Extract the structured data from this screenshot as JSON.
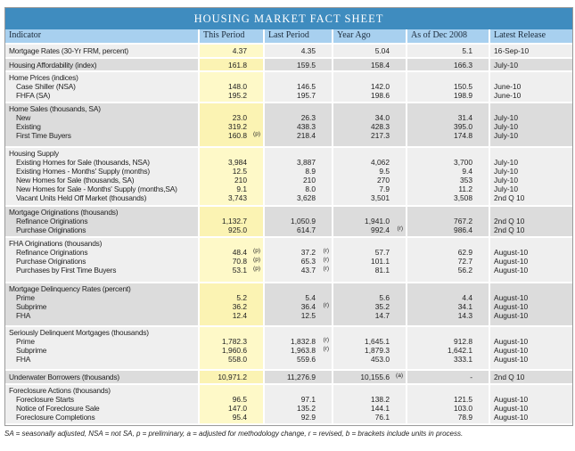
{
  "title": "HOUSING MARKET FACT SHEET",
  "columns": [
    "Indicator",
    "This Period",
    "Last Period",
    "Year Ago",
    "As of Dec 2008",
    "Latest Release"
  ],
  "rows": [
    {
      "label": "Mortgage Rates (30-Yr FRM, percent)",
      "values": [
        "4.37",
        "4.35",
        "5.04",
        "5.1"
      ],
      "notes": [
        "",
        "",
        "",
        ""
      ],
      "release": "16-Sep-10"
    },
    {
      "label": "Housing Affordability (index)",
      "values": [
        "161.8",
        "159.5",
        "158.4",
        "166.3"
      ],
      "notes": [
        "",
        "",
        "",
        ""
      ],
      "release": "July-10"
    },
    {
      "label": "Home Prices (indices)",
      "items": [
        {
          "label": "Case Shiller (NSA)",
          "values": [
            "148.0",
            "146.5",
            "142.0",
            "150.5"
          ],
          "notes": [
            "",
            "",
            "",
            ""
          ],
          "release": "June-10"
        },
        {
          "label": "FHFA (SA)",
          "values": [
            "195.2",
            "195.7",
            "198.6",
            "198.9"
          ],
          "notes": [
            "",
            "",
            "",
            ""
          ],
          "release": "June-10"
        }
      ]
    },
    {
      "label": "Home Sales (thousands, SA)",
      "items": [
        {
          "label": "New",
          "values": [
            "23.0",
            "26.3",
            "34.0",
            "31.4"
          ],
          "notes": [
            "",
            "",
            "",
            ""
          ],
          "release": "July-10"
        },
        {
          "label": "Existing",
          "values": [
            "319.2",
            "438.3",
            "428.3",
            "395.0"
          ],
          "notes": [
            "",
            "",
            "",
            ""
          ],
          "release": "July-10"
        },
        {
          "label": "First Time Buyers",
          "values": [
            "160.8",
            "218.4",
            "217.3",
            "174.8"
          ],
          "notes": [
            "(p)",
            "",
            "",
            ""
          ],
          "release": "July-10"
        }
      ]
    },
    {
      "label": "Housing Supply",
      "items": [
        {
          "label": "Existing Homes for Sale (thousands, NSA)",
          "values": [
            "3,984",
            "3,887",
            "4,062",
            "3,700"
          ],
          "notes": [
            "",
            "",
            "",
            ""
          ],
          "release": "July-10"
        },
        {
          "label": "Existing Homes - Months' Supply (months)",
          "values": [
            "12.5",
            "8.9",
            "9.5",
            "9.4"
          ],
          "notes": [
            "",
            "",
            "",
            ""
          ],
          "release": "July-10"
        },
        {
          "label": "New Homes for Sale (thousands, SA)",
          "values": [
            "210",
            "210",
            "270",
            "353"
          ],
          "notes": [
            "",
            "",
            "",
            ""
          ],
          "release": "July-10"
        },
        {
          "label": "New Homes for Sale - Months' Supply (months,SA)",
          "values": [
            "9.1",
            "8.0",
            "7.9",
            "11.2"
          ],
          "notes": [
            "",
            "",
            "",
            ""
          ],
          "release": "July-10"
        },
        {
          "label": "Vacant Units Held Off Market (thousands)",
          "values": [
            "3,743",
            "3,628",
            "3,501",
            "3,508"
          ],
          "notes": [
            "",
            "",
            "",
            ""
          ],
          "release": "2nd Q 10"
        }
      ]
    },
    {
      "label": "Mortgage Originations (thousands)",
      "items": [
        {
          "label": "Refinance Originations",
          "values": [
            "1,132.7",
            "1,050.9",
            "1,941.0",
            "767.2"
          ],
          "notes": [
            "",
            "",
            "",
            ""
          ],
          "release": "2nd Q 10"
        },
        {
          "label": "Purchase Originations",
          "values": [
            "925.0",
            "614.7",
            "992.4",
            "986.4"
          ],
          "notes": [
            "",
            "",
            "(r)",
            ""
          ],
          "release": "2nd Q 10"
        }
      ]
    },
    {
      "label": "FHA Originations (thousands)",
      "items": [
        {
          "label": "Refinance Originations",
          "values": [
            "48.4",
            "37.2",
            "57.7",
            "62.9"
          ],
          "notes": [
            "(p)",
            "(r)",
            "",
            ""
          ],
          "release": "August-10"
        },
        {
          "label": "Purchase Originations",
          "values": [
            "70.8",
            "65.3",
            "101.1",
            "72.7"
          ],
          "notes": [
            "(p)",
            "(r)",
            "",
            ""
          ],
          "release": "August-10"
        },
        {
          "label": "Purchases by First Time Buyers",
          "values": [
            "53.1",
            "43.7",
            "81.1",
            "56.2"
          ],
          "notes": [
            "(p)",
            "(r)",
            "",
            ""
          ],
          "release": "August-10"
        }
      ]
    },
    {
      "label": "Mortgage Delinquency Rates (percent)",
      "items": [
        {
          "label": "Prime",
          "values": [
            "5.2",
            "5.4",
            "5.6",
            "4.4"
          ],
          "notes": [
            "",
            "",
            "",
            ""
          ],
          "release": "August-10"
        },
        {
          "label": "Subprime",
          "values": [
            "36.2",
            "36.4",
            "35.2",
            "34.1"
          ],
          "notes": [
            "",
            "(r)",
            "",
            ""
          ],
          "release": "August-10"
        },
        {
          "label": "FHA",
          "values": [
            "12.4",
            "12.5",
            "14.7",
            "14.3"
          ],
          "notes": [
            "",
            "",
            "",
            ""
          ],
          "release": "August-10"
        }
      ]
    },
    {
      "label": "Seriously Delinquent Mortgages (thousands)",
      "items": [
        {
          "label": "Prime",
          "values": [
            "1,782.3",
            "1,832.8",
            "1,645.1",
            "912.8"
          ],
          "notes": [
            "",
            "(r)",
            "",
            ""
          ],
          "release": "August-10"
        },
        {
          "label": "Subprime",
          "values": [
            "1,960.6",
            "1,963.8",
            "1,879.3",
            "1,642.1"
          ],
          "notes": [
            "",
            "(r)",
            "",
            ""
          ],
          "release": "August-10"
        },
        {
          "label": "FHA",
          "values": [
            "558.0",
            "559.6",
            "453.0",
            "333.1"
          ],
          "notes": [
            "",
            "",
            "",
            ""
          ],
          "release": "August-10"
        }
      ]
    },
    {
      "label": "Underwater Borrowers (thousands)",
      "values": [
        "10,971.2",
        "11,276.9",
        "10,155.6",
        "-"
      ],
      "notes": [
        "",
        "",
        "(a)",
        ""
      ],
      "release": "2nd Q 10"
    },
    {
      "label": "Foreclosure Actions (thousands)",
      "items": [
        {
          "label": "Foreclosure Starts",
          "values": [
            "96.5",
            "97.1",
            "138.2",
            "121.5"
          ],
          "notes": [
            "",
            "",
            "",
            ""
          ],
          "release": "August-10"
        },
        {
          "label": "Notice of Foreclosure Sale",
          "values": [
            "147.0",
            "135.2",
            "144.1",
            "103.0"
          ],
          "notes": [
            "",
            "",
            "",
            ""
          ],
          "release": "August-10"
        },
        {
          "label": "Foreclosure Completions",
          "values": [
            "95.4",
            "92.9",
            "76.1",
            "78.9"
          ],
          "notes": [
            "",
            "",
            "",
            ""
          ],
          "release": "August-10"
        }
      ]
    }
  ],
  "footnote": "SA = seasonally adjusted, NSA = not SA, p = preliminary, a = adjusted for methodology change, r = revised, b = brackets include units in process.",
  "colors": {
    "title_bar": "#3f8cbf",
    "header": "#a8d0ef",
    "highlight": "#fef9c8"
  }
}
